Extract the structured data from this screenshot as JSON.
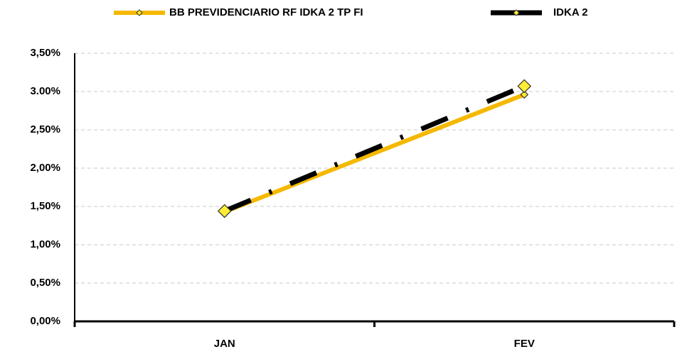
{
  "chart_data": {
    "type": "line",
    "categories": [
      "JAN",
      "FEV"
    ],
    "series": [
      {
        "name": "BB PREVIDENCIARIO RF IDKA 2 TP FI",
        "color": "#f5b800",
        "values": [
          1.43,
          2.96
        ]
      },
      {
        "name": "IDKA 2",
        "color": "#000000",
        "values": [
          1.44,
          3.07
        ]
      }
    ],
    "ylim": [
      0,
      3.5
    ],
    "yticks": [
      {
        "value": 0,
        "label": "0,00%"
      },
      {
        "value": 0.5,
        "label": "0,50%"
      },
      {
        "value": 1,
        "label": "1,00%"
      },
      {
        "value": 1.5,
        "label": "1,50%"
      },
      {
        "value": 2,
        "label": "2,00%"
      },
      {
        "value": 2.5,
        "label": "2,50%"
      },
      {
        "value": 3,
        "label": "3.00%"
      },
      {
        "value": 3.5,
        "label": "3,50%"
      }
    ],
    "grid": true,
    "legend": "top"
  }
}
